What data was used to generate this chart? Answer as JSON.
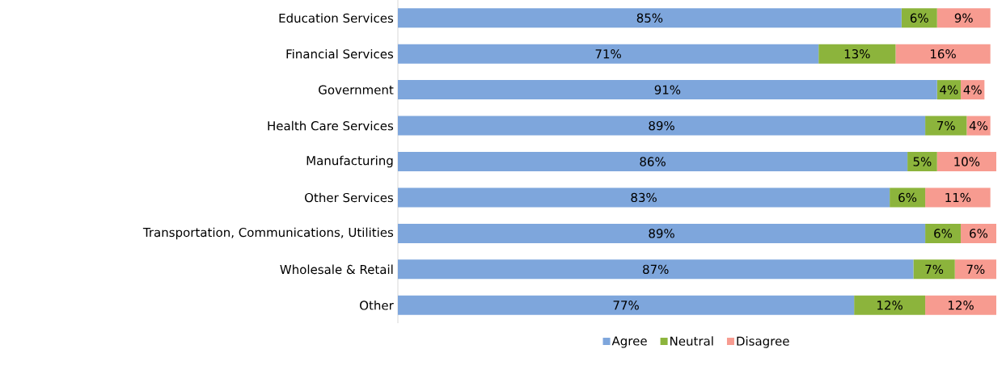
{
  "chart_data": {
    "type": "bar",
    "orientation": "horizontal",
    "stacked": true,
    "categories": [
      "Education Services",
      "Financial Services",
      "Government",
      "Health Care Services",
      "Manufacturing",
      "Other Services",
      "Transportation, Communications, Utilities",
      "Wholesale & Retail",
      "Other"
    ],
    "series": [
      {
        "name": "Agree",
        "color": "#7ea6dc",
        "values": [
          85,
          71,
          91,
          89,
          86,
          83,
          89,
          87,
          77
        ],
        "value_labels": [
          "85%",
          "71%",
          "91%",
          "89%",
          "86%",
          "83%",
          "89%",
          "87%",
          "77%"
        ]
      },
      {
        "name": "Neutral",
        "color": "#8cb43c",
        "values": [
          6,
          13,
          4,
          7,
          5,
          6,
          6,
          7,
          12
        ],
        "value_labels": [
          "6%",
          "13%",
          "4%",
          "7%",
          "5%",
          "6%",
          "6%",
          "7%",
          "12%"
        ]
      },
      {
        "name": "Disagree",
        "color": "#f79b90",
        "values": [
          9,
          16,
          4,
          4,
          10,
          11,
          6,
          7,
          12
        ],
        "value_labels": [
          "9%",
          "16%",
          "4%",
          "4%",
          "10%",
          "11%",
          "6%",
          "7%",
          "12%"
        ]
      }
    ],
    "legend": "bottom"
  }
}
